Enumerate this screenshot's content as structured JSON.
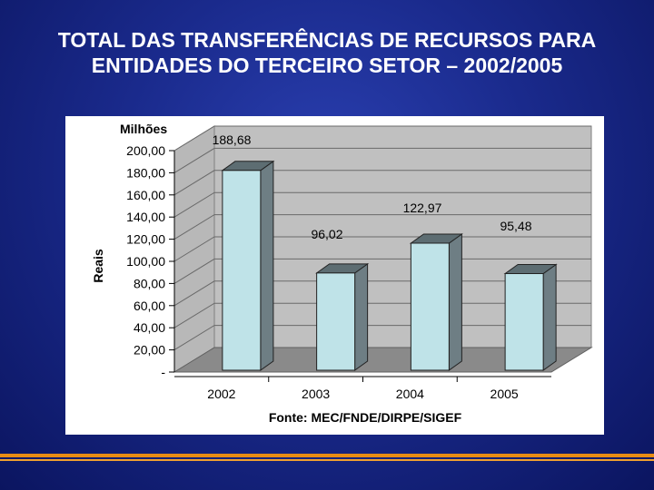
{
  "slide": {
    "title_line1": "TOTAL DAS TRANSFERÊNCIAS DE RECURSOS PARA",
    "title_line2": "ENTIDADES DO TERCEIRO SETOR – 2002/2005"
  },
  "colors": {
    "background": "#1a2a8c",
    "bar_front": "#bfe3e8",
    "bar_side": "#6e7e84",
    "wall": "#c0c0c0",
    "floor": "#8a8a8a",
    "footer_accent": "#e88c14"
  },
  "chart_data": {
    "type": "bar",
    "categories": [
      "2002",
      "2003",
      "2004",
      "2005"
    ],
    "values": [
      188.68,
      96.02,
      122.97,
      95.48
    ],
    "value_labels": [
      "188,68",
      "96,02",
      "122,97",
      "95,48"
    ],
    "unit_label": "Milhões",
    "ylabel": "Reais",
    "ylim": [
      0,
      200
    ],
    "yticks": [
      "-",
      "20,00",
      "40,00",
      "60,00",
      "80,00",
      "100,00",
      "120,00",
      "140,00",
      "160,00",
      "180,00",
      "200,00"
    ],
    "source": "Fonte: MEC/FNDE/DIRPE/SIGEF",
    "grid": true,
    "style": "3d"
  }
}
